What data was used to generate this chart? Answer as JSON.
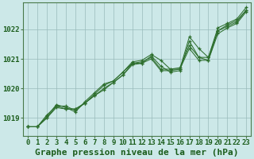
{
  "background_color": "#cce8e8",
  "plot_bg_color": "#cce8e8",
  "grid_color": "#99bbbb",
  "line_color": "#2d6e2d",
  "marker_color": "#2d6e2d",
  "title": "Graphe pression niveau de la mer (hPa)",
  "ylim": [
    1018.4,
    1022.9
  ],
  "yticks": [
    1019,
    1020,
    1021,
    1022
  ],
  "series": [
    [
      1018.7,
      1018.7,
      1019.0,
      1019.4,
      1019.3,
      1019.3,
      1019.5,
      1019.75,
      1020.0,
      1020.2,
      1020.45,
      1020.85,
      1020.9,
      1021.05,
      1020.65,
      1020.65,
      1020.7,
      1021.45,
      1021.05,
      1021.05,
      1021.95,
      1022.15,
      1022.3,
      1022.65
    ],
    [
      1018.7,
      1018.7,
      1019.05,
      1019.45,
      1019.35,
      1019.2,
      1019.55,
      1019.85,
      1020.15,
      1020.25,
      1020.55,
      1020.9,
      1020.95,
      1021.15,
      1020.95,
      1020.65,
      1020.65,
      1021.75,
      1021.35,
      1021.05,
      1022.05,
      1022.2,
      1022.35,
      1022.75
    ],
    [
      1018.7,
      1018.7,
      1019.1,
      1019.4,
      1019.4,
      1019.25,
      1019.5,
      1019.8,
      1020.1,
      1020.25,
      1020.55,
      1020.85,
      1020.85,
      1021.1,
      1020.75,
      1020.55,
      1020.6,
      1021.6,
      1021.05,
      1020.95,
      1021.95,
      1022.1,
      1022.25,
      1022.65
    ],
    [
      1018.7,
      1018.7,
      1019.0,
      1019.35,
      1019.3,
      1019.3,
      1019.5,
      1019.75,
      1019.95,
      1020.2,
      1020.45,
      1020.8,
      1020.85,
      1021.0,
      1020.6,
      1020.6,
      1020.65,
      1021.35,
      1020.95,
      1020.95,
      1021.85,
      1022.05,
      1022.2,
      1022.6
    ]
  ],
  "title_fontsize": 8,
  "tick_fontsize": 6.5,
  "title_color": "#1a5c1a",
  "tick_color": "#1a5c1a",
  "spine_color": "#4a7a4a",
  "xlabel_ticks": [
    "0",
    "1",
    "2",
    "3",
    "4",
    "5",
    "6",
    "7",
    "8",
    "9",
    "10",
    "11",
    "12",
    "13",
    "14",
    "15",
    "16",
    "17",
    "18",
    "19",
    "20",
    "21",
    "22",
    "23"
  ]
}
